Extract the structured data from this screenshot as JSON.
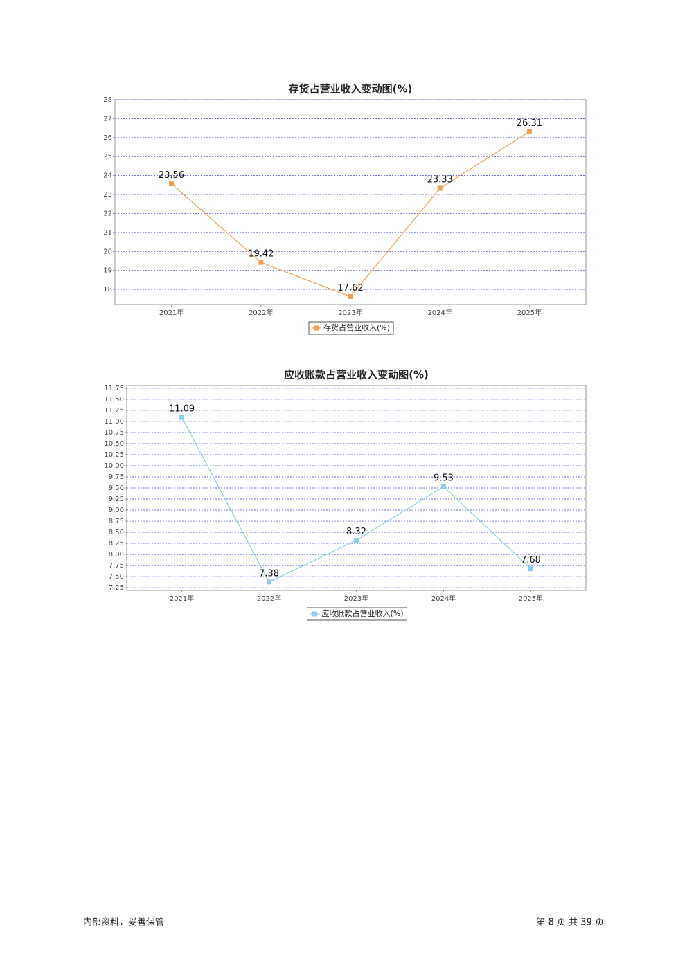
{
  "chart_data": [
    {
      "type": "line",
      "title": "存货占营业收入变动图(%)",
      "categories": [
        "2021年",
        "2022年",
        "2023年",
        "2024年",
        "2025年"
      ],
      "series": [
        {
          "name": "存货占营业收入(%)",
          "color": "#f0a050",
          "values": [
            23.56,
            19.42,
            17.62,
            23.33,
            26.31
          ]
        }
      ],
      "ylim": [
        17.2,
        28
      ],
      "yticks": [
        18,
        19,
        20,
        21,
        22,
        23,
        24,
        25,
        26,
        27,
        28
      ],
      "grid": true,
      "legend": "bottom"
    },
    {
      "type": "line",
      "title": "应收账款占营业收入变动图(%)",
      "categories": [
        "2021年",
        "2022年",
        "2023年",
        "2024年",
        "2025年"
      ],
      "series": [
        {
          "name": "应收账款占营业收入(%)",
          "color": "#8ccdf0",
          "values": [
            11.09,
            7.38,
            8.32,
            9.53,
            7.68
          ]
        }
      ],
      "ylim": [
        7.19,
        11.81
      ],
      "yticks": [
        {
          "value": 7.25,
          "label": "7.25"
        },
        {
          "value": 7.5,
          "label": "7.50"
        },
        {
          "value": 7.75,
          "label": "7.75"
        },
        {
          "value": 8,
          "label": "8.00"
        },
        {
          "value": 8.25,
          "label": "8.25"
        },
        {
          "value": 8.5,
          "label": "8.50"
        },
        {
          "value": 8.75,
          "label": "8.75"
        },
        {
          "value": 9,
          "label": "9.00"
        },
        {
          "value": 9.25,
          "label": "9.25"
        },
        {
          "value": 9.5,
          "label": "9.50"
        },
        {
          "value": 9.75,
          "label": "9.75"
        },
        {
          "value": 10,
          "label": "10.00"
        },
        {
          "value": 10.25,
          "label": "10.25"
        },
        {
          "value": 10.5,
          "label": "10.50"
        },
        {
          "value": 10.75,
          "label": "10.75"
        },
        {
          "value": 11,
          "label": "11.00"
        },
        {
          "value": 11.25,
          "label": "11.25"
        },
        {
          "value": 11.5,
          "label": "11.50"
        },
        {
          "value": 11.75,
          "label": "11.75"
        }
      ],
      "grid": true,
      "legend": "bottom"
    }
  ],
  "footer": {
    "left": "内部资料，妥善保管",
    "right": "第 8 页  共 39 页"
  }
}
